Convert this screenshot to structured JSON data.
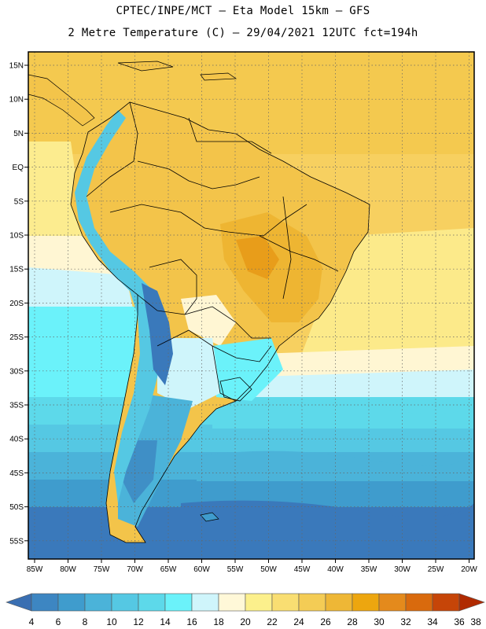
{
  "header": {
    "line1": "CPTEC/INPE/MCT –  Eta Model 15km – GFS",
    "line2": "2 Metre Temperature (C) – 29/04/2021 12UTC fct=194h"
  },
  "map": {
    "lat_labels": [
      "15N",
      "10N",
      "5N",
      "EQ",
      "5S",
      "10S",
      "15S",
      "20S",
      "25S",
      "30S",
      "35S",
      "40S",
      "45S",
      "50S",
      "55S"
    ],
    "lon_labels": [
      "85W",
      "80W",
      "75W",
      "70W",
      "65W",
      "60W",
      "55W",
      "50W",
      "45W",
      "40W",
      "35W",
      "30W",
      "25W",
      "20W"
    ]
  },
  "colorbar": {
    "labels": [
      "4",
      "6",
      "8",
      "10",
      "12",
      "14",
      "16",
      "18",
      "20",
      "22",
      "24",
      "26",
      "28",
      "30",
      "32",
      "34",
      "36",
      "38"
    ],
    "colors": [
      "#3a6fb2",
      "#3d86c2",
      "#3f9ccd",
      "#4bb3d9",
      "#55c8e3",
      "#5dd9ea",
      "#6bf2fa",
      "#cff5fb",
      "#fff8d8",
      "#fcf08c",
      "#f9de72",
      "#f4cc55",
      "#eeb736",
      "#eda60f",
      "#e48a1c",
      "#d96a0d",
      "#c64508",
      "#b02a00"
    ]
  }
}
